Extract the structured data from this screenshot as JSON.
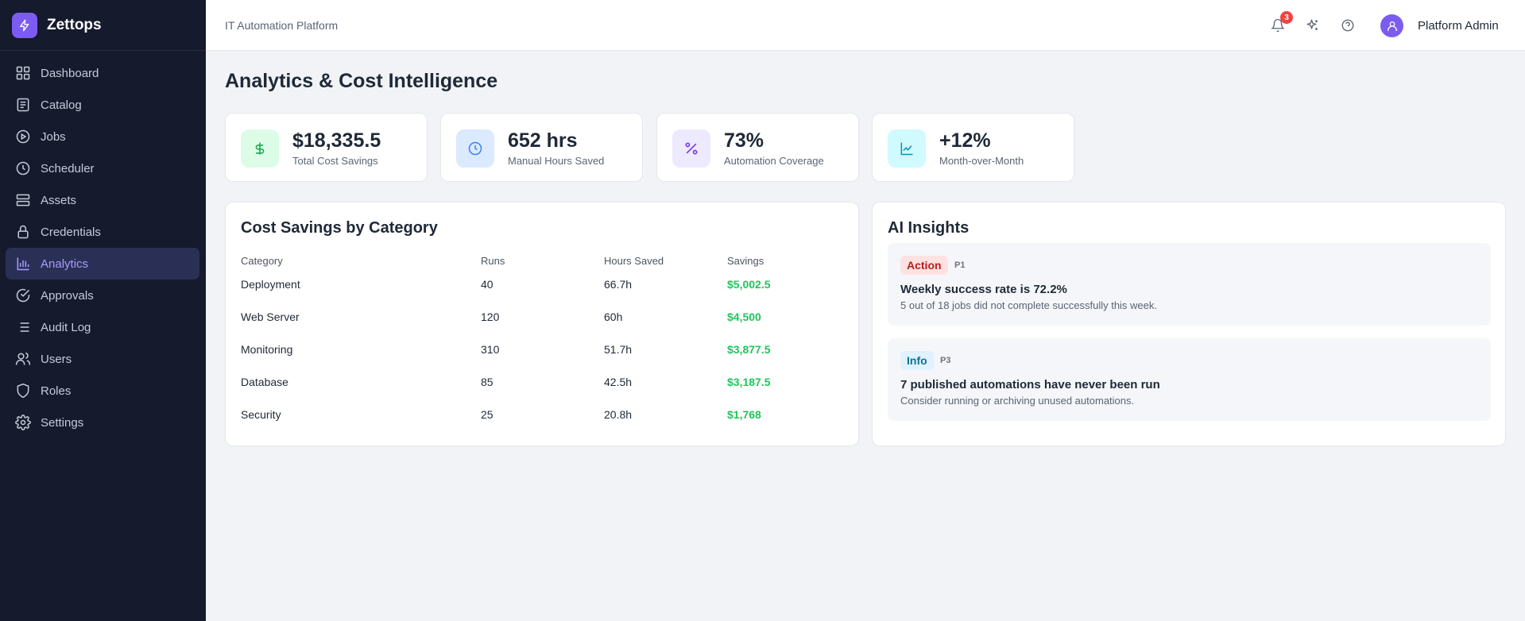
{
  "brand": {
    "name": "Zettops"
  },
  "sidebar": {
    "items": [
      {
        "label": "Dashboard",
        "icon": "grid-icon"
      },
      {
        "label": "Catalog",
        "icon": "book-icon"
      },
      {
        "label": "Jobs",
        "icon": "play-circle-icon"
      },
      {
        "label": "Scheduler",
        "icon": "clock-icon"
      },
      {
        "label": "Assets",
        "icon": "server-icon"
      },
      {
        "label": "Credentials",
        "icon": "lock-icon"
      },
      {
        "label": "Analytics",
        "icon": "bar-chart-icon",
        "active": true
      },
      {
        "label": "Approvals",
        "icon": "check-circle-icon"
      },
      {
        "label": "Audit Log",
        "icon": "list-icon"
      },
      {
        "label": "Users",
        "icon": "users-icon"
      },
      {
        "label": "Roles",
        "icon": "shield-icon"
      },
      {
        "label": "Settings",
        "icon": "gear-icon"
      }
    ]
  },
  "topbar": {
    "title": "IT Automation Platform",
    "notification_count": "3",
    "user_name": "Platform Admin"
  },
  "page": {
    "title": "Analytics & Cost Intelligence"
  },
  "stats": [
    {
      "value": "$18,335.5",
      "label": "Total Cost Savings",
      "icon": "dollar-icon",
      "color": "#16a34a",
      "bg": "#dcfce7"
    },
    {
      "value": "652 hrs",
      "label": "Manual Hours Saved",
      "icon": "clock-icon",
      "color": "#3b82f6",
      "bg": "#dbeafe"
    },
    {
      "value": "73%",
      "label": "Automation Coverage",
      "icon": "percent-icon",
      "color": "#7c3aed",
      "bg": "#ede9fe"
    },
    {
      "value": "+12%",
      "label": "Month-over-Month",
      "icon": "trending-up-icon",
      "color": "#0891b2",
      "bg": "#cffafe"
    }
  ],
  "cost_table": {
    "title": "Cost Savings by Category",
    "headers": [
      "Category",
      "Runs",
      "Hours Saved",
      "Savings"
    ],
    "rows": [
      {
        "category": "Deployment",
        "runs": "40",
        "hours": "66.7h",
        "savings": "$5,002.5"
      },
      {
        "category": "Web Server",
        "runs": "120",
        "hours": "60h",
        "savings": "$4,500"
      },
      {
        "category": "Monitoring",
        "runs": "310",
        "hours": "51.7h",
        "savings": "$3,877.5"
      },
      {
        "category": "Database",
        "runs": "85",
        "hours": "42.5h",
        "savings": "$3,187.5"
      },
      {
        "category": "Security",
        "runs": "25",
        "hours": "20.8h",
        "savings": "$1,768"
      }
    ]
  },
  "insights": {
    "title": "AI Insights",
    "items": [
      {
        "tag": "Action",
        "priority": "P1",
        "title": "Weekly success rate is 72.2%",
        "desc": "5 out of 18 jobs did not complete successfully this week.",
        "tag_color": "#b91c1c",
        "tag_bg": "#fee2e2"
      },
      {
        "tag": "Info",
        "priority": "P3",
        "title": "7 published automations have never been run",
        "desc": "Consider running or archiving unused automations.",
        "tag_color": "#0e7490",
        "tag_bg": "#e0f2fe"
      }
    ]
  },
  "colors": {
    "accent": "#7c5cf0",
    "sidebar_bg": "#151a2d",
    "savings": "#22c55e"
  }
}
